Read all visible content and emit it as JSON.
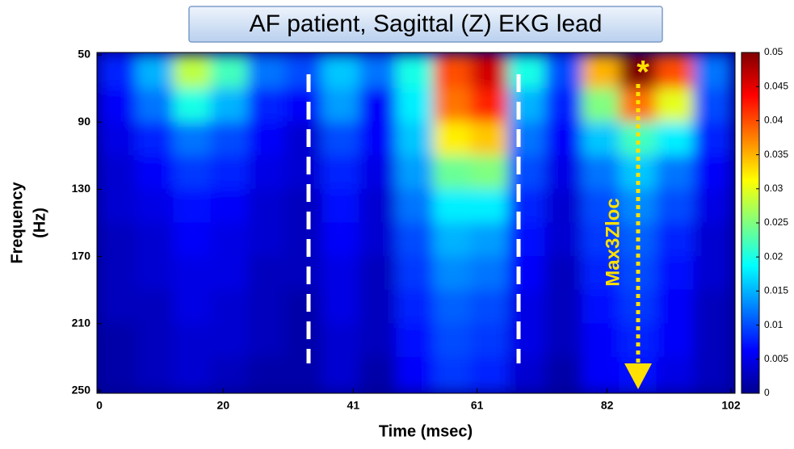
{
  "chart_data": {
    "type": "heatmap",
    "title": "AF patient, Sagittal (Z) EKG lead",
    "xlabel": "Time (msec)",
    "ylabel": [
      "Frequency",
      "(Hz)"
    ],
    "colormap": "jet",
    "xlim": [
      0,
      102
    ],
    "xticks": [
      0,
      20,
      41,
      61,
      82,
      102
    ],
    "ylim": [
      250,
      50
    ],
    "yticks": [
      50,
      90,
      130,
      170,
      210,
      250
    ],
    "clim": [
      0,
      0.05
    ],
    "cticks": [
      0,
      0.005,
      0.01,
      0.015,
      0.02,
      0.025,
      0.03,
      0.035,
      0.04,
      0.045,
      0.05
    ],
    "x_edges": [
      0,
      6,
      12,
      18,
      24,
      30,
      36,
      42,
      48,
      54,
      60,
      66,
      72,
      78,
      84,
      90,
      96,
      102
    ],
    "y_edges": [
      50,
      70,
      90,
      110,
      130,
      150,
      170,
      190,
      210,
      230,
      250
    ],
    "z": [
      [
        0.008,
        0.015,
        0.028,
        0.022,
        0.012,
        0.01,
        0.016,
        0.012,
        0.02,
        0.04,
        0.046,
        0.02,
        0.01,
        0.035,
        0.05,
        0.04,
        0.012
      ],
      [
        0.006,
        0.012,
        0.02,
        0.015,
        0.008,
        0.006,
        0.014,
        0.006,
        0.018,
        0.038,
        0.042,
        0.015,
        0.008,
        0.025,
        0.038,
        0.03,
        0.01
      ],
      [
        0.005,
        0.008,
        0.012,
        0.01,
        0.006,
        0.004,
        0.01,
        0.006,
        0.016,
        0.032,
        0.034,
        0.012,
        0.006,
        0.016,
        0.022,
        0.018,
        0.008
      ],
      [
        0.004,
        0.006,
        0.009,
        0.008,
        0.005,
        0.004,
        0.008,
        0.005,
        0.014,
        0.024,
        0.025,
        0.01,
        0.005,
        0.012,
        0.016,
        0.012,
        0.006
      ],
      [
        0.004,
        0.005,
        0.007,
        0.006,
        0.004,
        0.003,
        0.007,
        0.004,
        0.012,
        0.018,
        0.018,
        0.008,
        0.004,
        0.01,
        0.013,
        0.01,
        0.005
      ],
      [
        0.003,
        0.004,
        0.006,
        0.005,
        0.004,
        0.003,
        0.006,
        0.004,
        0.01,
        0.015,
        0.014,
        0.007,
        0.004,
        0.009,
        0.011,
        0.008,
        0.004
      ],
      [
        0.003,
        0.004,
        0.005,
        0.005,
        0.003,
        0.003,
        0.005,
        0.003,
        0.009,
        0.013,
        0.012,
        0.006,
        0.003,
        0.008,
        0.01,
        0.007,
        0.004
      ],
      [
        0.003,
        0.003,
        0.005,
        0.004,
        0.003,
        0.002,
        0.005,
        0.003,
        0.008,
        0.011,
        0.01,
        0.005,
        0.003,
        0.007,
        0.009,
        0.006,
        0.003
      ],
      [
        0.002,
        0.003,
        0.004,
        0.004,
        0.003,
        0.002,
        0.004,
        0.003,
        0.007,
        0.01,
        0.009,
        0.005,
        0.003,
        0.006,
        0.008,
        0.006,
        0.003
      ],
      [
        0.002,
        0.003,
        0.004,
        0.003,
        0.002,
        0.002,
        0.004,
        0.002,
        0.006,
        0.009,
        0.008,
        0.004,
        0.002,
        0.006,
        0.007,
        0.005,
        0.003
      ]
    ],
    "annotations": [
      "*",
      "Max3Zloc"
    ]
  }
}
